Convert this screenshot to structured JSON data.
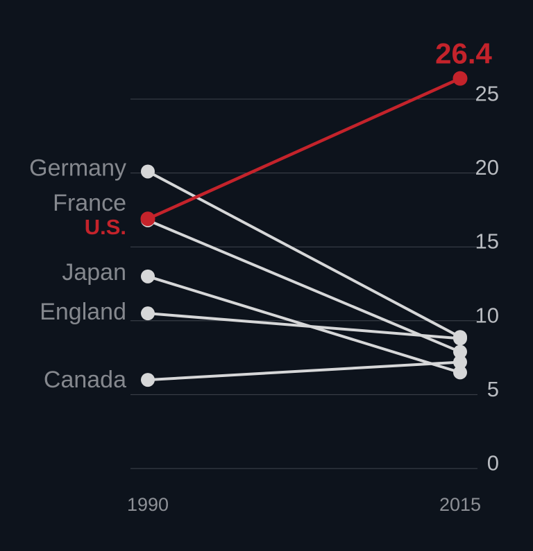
{
  "figure": {
    "background_color": "#0d131c",
    "grid_color": "#40464e",
    "default_series_color": "#d6d7d8",
    "highlight_color": "#c4232b",
    "country_label_color": "#85888e",
    "tick_label_color": "#b9bcc1",
    "year_label_color": "#8d9096"
  },
  "chart_data": {
    "type": "line",
    "subtype": "slopegraph",
    "title": "",
    "x_categories": [
      "1990",
      "2015"
    ],
    "series": [
      {
        "name": "Germany",
        "values": [
          20.1,
          8.9
        ],
        "color": "default",
        "label_dy": -5
      },
      {
        "name": "France",
        "values": [
          16.8,
          7.9
        ],
        "color": "default",
        "label_dy": -25
      },
      {
        "name": "U.S.",
        "values": [
          16.9,
          26.4
        ],
        "color": "highlight",
        "bold": true,
        "label_dy": 12,
        "end_value_label": "26.4"
      },
      {
        "name": "Japan",
        "values": [
          13.0,
          6.5
        ],
        "color": "default",
        "label_dy": -6
      },
      {
        "name": "England",
        "values": [
          10.5,
          8.8
        ],
        "color": "default",
        "label_dy": -2
      },
      {
        "name": "Canada",
        "values": [
          6.0,
          7.2
        ],
        "color": "default",
        "label_dy": 0
      }
    ],
    "y_ticks": [
      0,
      5,
      10,
      15,
      20,
      25
    ],
    "ylim": [
      0,
      29
    ],
    "grid": true,
    "legend": "direct-labels-left",
    "annotations": [
      {
        "series": "U.S.",
        "point_index": 1,
        "text": "26.4",
        "color": "#c4232b"
      }
    ]
  }
}
